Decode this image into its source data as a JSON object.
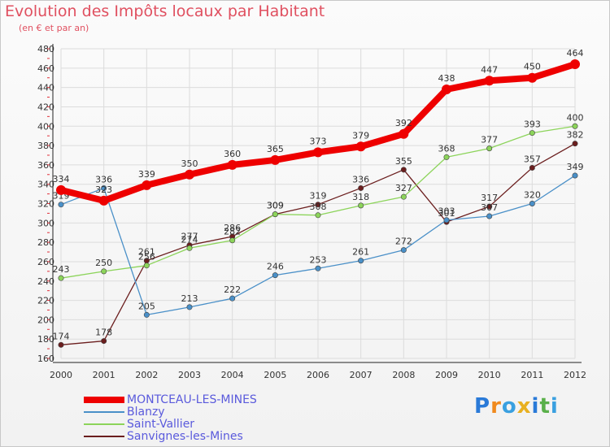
{
  "header": {
    "title": "Evolution des Impôts locaux par Habitant",
    "subtitle": "(en € et par an)"
  },
  "brand": {
    "logo_text": "Proxiti",
    "letter_colors": [
      "#2a7ad8",
      "#f08a1e",
      "#3aa0e0",
      "#e8b020",
      "#2a7ad8",
      "#5ab04a",
      "#3aa0e0"
    ]
  },
  "chart_data": {
    "type": "line",
    "title": "Evolution des Impôts locaux par Habitant",
    "subtitle": "(en € et par an)",
    "xlabel": "",
    "ylabel": "",
    "categories": [
      "2000",
      "2001",
      "2002",
      "2003",
      "2004",
      "2005",
      "2006",
      "2007",
      "2008",
      "2009",
      "2010",
      "2011",
      "2012"
    ],
    "ylim": [
      160,
      480
    ],
    "yticks": [
      160,
      180,
      200,
      220,
      240,
      260,
      280,
      300,
      320,
      340,
      360,
      380,
      400,
      420,
      440,
      460,
      480
    ],
    "grid": true,
    "legend_position": "bottom-left",
    "series": [
      {
        "name": "MONTCEAU-LES-MINES",
        "color": "#ee0000",
        "style": "bold",
        "values": [
          334,
          323,
          339,
          350,
          360,
          365,
          373,
          379,
          392,
          438,
          447,
          450,
          464
        ]
      },
      {
        "name": "Blanzy",
        "color": "#4a90c8",
        "style": "thin",
        "values": [
          319,
          336,
          205,
          213,
          222,
          246,
          253,
          261,
          272,
          303,
          307,
          320,
          349
        ]
      },
      {
        "name": "Saint-Vallier",
        "color": "#8cd45a",
        "style": "thin",
        "values": [
          243,
          250,
          256,
          274,
          282,
          309,
          308,
          318,
          327,
          368,
          377,
          393,
          400
        ]
      },
      {
        "name": "Sanvignes-les-Mines",
        "color": "#6b1e1e",
        "style": "thin",
        "values": [
          174,
          178,
          261,
          277,
          286,
          309,
          319,
          336,
          355,
          301,
          317,
          357,
          382
        ]
      }
    ]
  }
}
